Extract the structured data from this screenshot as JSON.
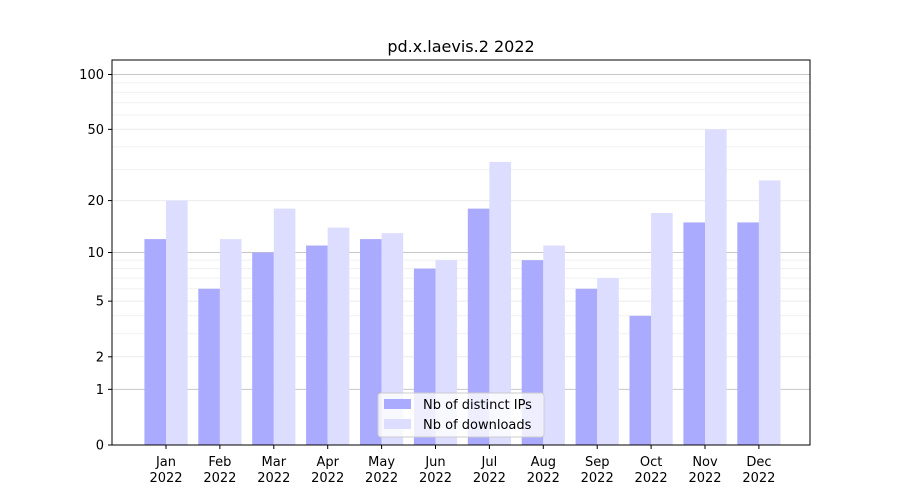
{
  "chart_data": {
    "type": "bar",
    "title": "pd.x.laevis.2 2022",
    "xlabel": "",
    "ylabel": "",
    "categories": [
      [
        "Jan",
        "2022"
      ],
      [
        "Feb",
        "2022"
      ],
      [
        "Mar",
        "2022"
      ],
      [
        "Apr",
        "2022"
      ],
      [
        "May",
        "2022"
      ],
      [
        "Jun",
        "2022"
      ],
      [
        "Jul",
        "2022"
      ],
      [
        "Aug",
        "2022"
      ],
      [
        "Sep",
        "2022"
      ],
      [
        "Oct",
        "2022"
      ],
      [
        "Nov",
        "2022"
      ],
      [
        "Dec",
        "2022"
      ]
    ],
    "series": [
      {
        "name": "Nb of distinct IPs",
        "color": "#aaaaff",
        "values": [
          12,
          6,
          10,
          11,
          12,
          8,
          18,
          9,
          6,
          4,
          15,
          15
        ]
      },
      {
        "name": "Nb of downloads",
        "color": "#ddddff",
        "values": [
          20,
          12,
          18,
          14,
          13,
          9,
          33,
          11,
          7,
          17,
          50,
          26
        ]
      }
    ],
    "y_scale": "log1p",
    "ylim": [
      0,
      120
    ],
    "yticks": [
      0,
      1,
      2,
      5,
      10,
      20,
      50,
      100
    ],
    "ytick_labels": [
      "0",
      "1",
      "2",
      "5",
      "10",
      "20",
      "50",
      "100"
    ],
    "grid": true,
    "legend_placement": "lower center"
  }
}
